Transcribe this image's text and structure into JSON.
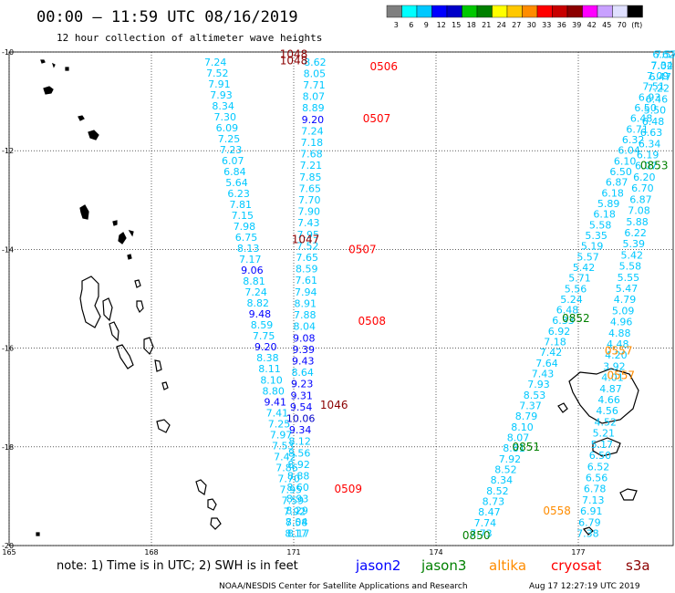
{
  "header": {
    "title": "00:00 – 11:59 UTC 08/16/2019",
    "subtitle": "12 hour collection of altimeter wave heights"
  },
  "legend": {
    "colors": [
      "#7f7f7f",
      "#00ffff",
      "#00c8ff",
      "#0000ff",
      "#0000c8",
      "#00c800",
      "#008000",
      "#ffff00",
      "#ffc800",
      "#ff8c00",
      "#ff0000",
      "#c80000",
      "#8b0000",
      "#ff00ff",
      "#c8a0ff",
      "#e0e0ff",
      "#000000"
    ],
    "labels": [
      "3",
      "6",
      "9",
      "12",
      "15",
      "18",
      "21",
      "24",
      "27",
      "30",
      "33",
      "36",
      "39",
      "42",
      "45",
      "70",
      "(ft)"
    ]
  },
  "footer": {
    "note": "note: 1) Time is in UTC; 2) SWH is in feet",
    "satellites": [
      {
        "name": "jason2",
        "color": "#0000ff"
      },
      {
        "name": "jason3",
        "color": "#008000"
      },
      {
        "name": "altika",
        "color": "#ff8c00"
      },
      {
        "name": "cryosat",
        "color": "#ff0000"
      },
      {
        "name": "s3a",
        "color": "#8b0000"
      }
    ],
    "credit": "NOAA/NESDIS Center for Satellite Applications and Research",
    "timestamp": "Aug 17 12:27:19 UTC 2019"
  },
  "chart_data": {
    "type": "scatter",
    "x_axis": {
      "range": [
        165,
        179
      ],
      "ticks": [
        "165",
        "168",
        "171",
        "174",
        "177"
      ]
    },
    "y_axis": {
      "range": [
        -20,
        -10
      ],
      "ticks": [
        "-10",
        "-12",
        "-14",
        "-16",
        "-18",
        "-20"
      ]
    },
    "grid": true,
    "tracks": [
      {
        "lonStart": 169.35,
        "latStart": -10.2,
        "lonEnd": 171.1,
        "latEnd": -19.75,
        "color": "#00c8ff",
        "values": [
          "7.24",
          "7.52",
          "7.91",
          "7.93",
          "8.34",
          "7.30",
          "6.09",
          "7.25",
          "7.23",
          "6.07",
          "6.84",
          "5.64",
          "6.23",
          "7.81",
          "7.15",
          "7.98",
          "6.75",
          "8.13",
          "7.17",
          "9.06",
          "8.81",
          "7.24",
          "8.82",
          "9.48",
          "8.59",
          "7.75",
          "9.20",
          "8.38",
          "8.11",
          "8.10",
          "8.80",
          "9.41",
          "7.41",
          "7.25",
          "7.97",
          "7.53",
          "7.42",
          "7.86",
          "7.70",
          "7.95",
          "7.59",
          "7.92",
          "7.58",
          "8.17"
        ]
      },
      {
        "lonStart": 171.45,
        "latStart": -10.2,
        "lonEnd": 171.05,
        "latEnd": -19.75,
        "color": "#00c8ff",
        "values": [
          "8.62",
          "8.05",
          "7.71",
          "8.07",
          "8.89",
          "9.20",
          "7.24",
          "7.18",
          "7.68",
          "7.21",
          "7.85",
          "7.65",
          "7.70",
          "7.90",
          "7.43",
          "7.95",
          "7.52",
          "7.65",
          "8.59",
          "7.61",
          "7.94",
          "8.91",
          "7.88",
          "8.04",
          "9.08",
          "9.39",
          "9.43",
          "8.64",
          "9.23",
          "9.31",
          "9.54",
          "10.06",
          "9.34",
          "8.12",
          "8.56",
          "8.92",
          "8.88",
          "8.60",
          "8.93",
          "8.29",
          "8.04",
          "8.17"
        ]
      },
      {
        "lonStart": 178.85,
        "latStart": -10.05,
        "lonEnd": 174.95,
        "latEnd": -19.75,
        "color": "#00c8ff",
        "values": [
          "7.57",
          "7.34",
          "7.09",
          "7.51",
          "6.93",
          "6.50",
          "6.48",
          "6.71",
          "6.32",
          "6.04",
          "6.10",
          "6.50",
          "6.87",
          "6.18",
          "5.89",
          "6.18",
          "5.58",
          "5.35",
          "5.19",
          "5.57",
          "5.42",
          "5.71",
          "5.56",
          "5.24",
          "6.48",
          "6.33",
          "6.92",
          "7.18",
          "7.42",
          "7.64",
          "7.43",
          "7.93",
          "8.53",
          "7.37",
          "8.79",
          "8.10",
          "8.07",
          "8.81",
          "7.92",
          "8.52",
          "8.34",
          "8.52",
          "8.73",
          "8.47",
          "7.74",
          "7.73"
        ]
      },
      {
        "lonStart": 178.8,
        "latStart": -10.05,
        "lonEnd": 177.2,
        "latEnd": -19.75,
        "color": "#00c8ff",
        "values": [
          "6.62",
          "7.02",
          "6.47",
          "7.22",
          "6.46",
          "5.50",
          "6.48",
          "6.63",
          "6.34",
          "6.19",
          "6.07",
          "6.20",
          "6.70",
          "6.87",
          "7.08",
          "5.88",
          "6.22",
          "5.39",
          "5.42",
          "5.58",
          "5.55",
          "5.47",
          "4.79",
          "5.09",
          "4.96",
          "4.88",
          "4.48",
          "4.20",
          "3.92",
          "4.01",
          "4.87",
          "4.66",
          "4.56",
          "4.52",
          "5.21",
          "5.17",
          "6.50",
          "6.52",
          "6.56",
          "6.78",
          "7.13",
          "6.91",
          "6.79",
          "7.38"
        ]
      }
    ],
    "pass_labels": [
      {
        "text": "1048",
        "lon": 171.0,
        "lat": -10.05,
        "color": "#8b0000"
      },
      {
        "text": "1048",
        "lon": 171.0,
        "lat": -10.18,
        "color": "#8b0000"
      },
      {
        "text": "0506",
        "lon": 172.9,
        "lat": -10.3,
        "color": "#ff0000"
      },
      {
        "text": "0507",
        "lon": 172.75,
        "lat": -11.35,
        "color": "#ff0000"
      },
      {
        "text": "1047",
        "lon": 171.25,
        "lat": -13.8,
        "color": "#8b0000"
      },
      {
        "text": "0507",
        "lon": 172.45,
        "lat": -14.0,
        "color": "#ff0000"
      },
      {
        "text": "0508",
        "lon": 172.65,
        "lat": -15.45,
        "color": "#ff0000"
      },
      {
        "text": "1046",
        "lon": 171.85,
        "lat": -17.15,
        "color": "#8b0000"
      },
      {
        "text": "0509",
        "lon": 172.15,
        "lat": -18.85,
        "color": "#ff0000"
      },
      {
        "text": "0853",
        "lon": 178.6,
        "lat": -12.3,
        "color": "#008000"
      },
      {
        "text": "0852",
        "lon": 176.95,
        "lat": -15.4,
        "color": "#008000"
      },
      {
        "text": "0851",
        "lon": 175.9,
        "lat": -18.0,
        "color": "#008000"
      },
      {
        "text": "0850",
        "lon": 174.85,
        "lat": -19.8,
        "color": "#008000"
      },
      {
        "text": "0557",
        "lon": 177.85,
        "lat": -16.05,
        "color": "#ff8c00"
      },
      {
        "text": "0557",
        "lon": 177.9,
        "lat": -16.55,
        "color": "#ff8c00"
      },
      {
        "text": "0558",
        "lon": 176.55,
        "lat": -19.3,
        "color": "#ff8c00"
      }
    ]
  }
}
